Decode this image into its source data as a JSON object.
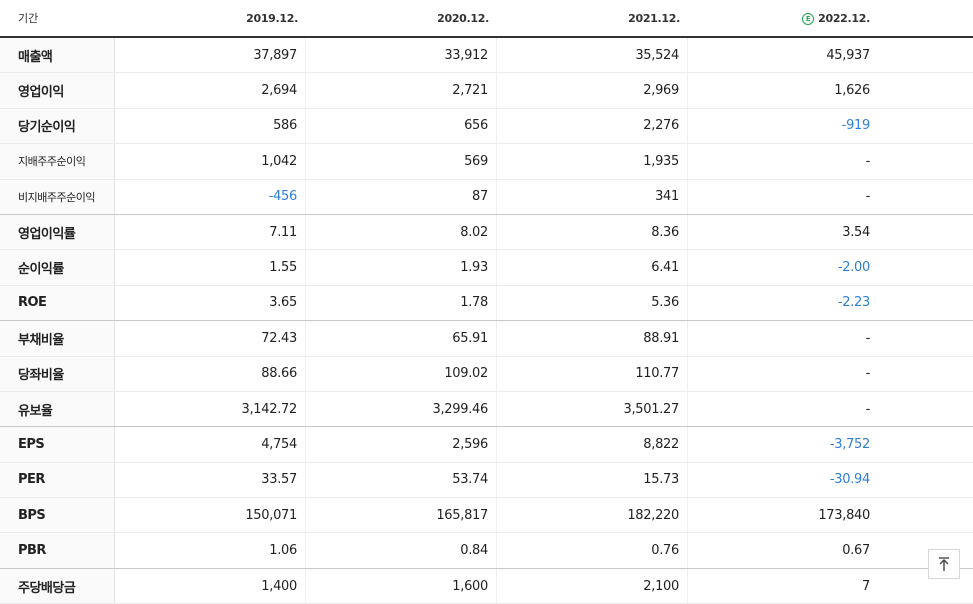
{
  "header": {
    "period_label": "기간",
    "years": [
      "2019.12.",
      "2020.12.",
      "2021.12.",
      "2022.12."
    ],
    "estimate_badge": "E"
  },
  "rows": [
    {
      "label": "매출액",
      "values": [
        "37,897",
        "33,912",
        "35,524",
        "45,937"
      ]
    },
    {
      "label": "영업이익",
      "values": [
        "2,694",
        "2,721",
        "2,969",
        "1,626"
      ]
    },
    {
      "label": "당기순이익",
      "values": [
        "586",
        "656",
        "2,276",
        "-919"
      ]
    },
    {
      "label": "지배주주순이익",
      "values": [
        "1,042",
        "569",
        "1,935",
        "-"
      ]
    },
    {
      "label": "비지배주주순이익",
      "values": [
        "-456",
        "87",
        "341",
        "-"
      ]
    },
    {
      "label": "영업이익률",
      "values": [
        "7.11",
        "8.02",
        "8.36",
        "3.54"
      ]
    },
    {
      "label": "순이익률",
      "values": [
        "1.55",
        "1.93",
        "6.41",
        "-2.00"
      ]
    },
    {
      "label": "ROE",
      "values": [
        "3.65",
        "1.78",
        "5.36",
        "-2.23"
      ]
    },
    {
      "label": "부채비율",
      "values": [
        "72.43",
        "65.91",
        "88.91",
        "-"
      ]
    },
    {
      "label": "당좌비율",
      "values": [
        "88.66",
        "109.02",
        "110.77",
        "-"
      ]
    },
    {
      "label": "유보율",
      "values": [
        "3,142.72",
        "3,299.46",
        "3,501.27",
        "-"
      ]
    },
    {
      "label": "EPS",
      "values": [
        "4,754",
        "2,596",
        "8,822",
        "-3,752"
      ]
    },
    {
      "label": "PER",
      "values": [
        "33.57",
        "53.74",
        "15.73",
        "-30.94"
      ]
    },
    {
      "label": "BPS",
      "values": [
        "150,071",
        "165,817",
        "182,220",
        "173,840"
      ]
    },
    {
      "label": "PBR",
      "values": [
        "1.06",
        "0.84",
        "0.76",
        "0.67"
      ]
    },
    {
      "label": "주당배당금",
      "values": [
        "1,400",
        "1,600",
        "2,100",
        "7"
      ]
    }
  ],
  "colors": {
    "negative": "#2f7fd6",
    "estimate": "#29a35a"
  },
  "scroll_top_icon": "arrow-up-to-top-icon"
}
